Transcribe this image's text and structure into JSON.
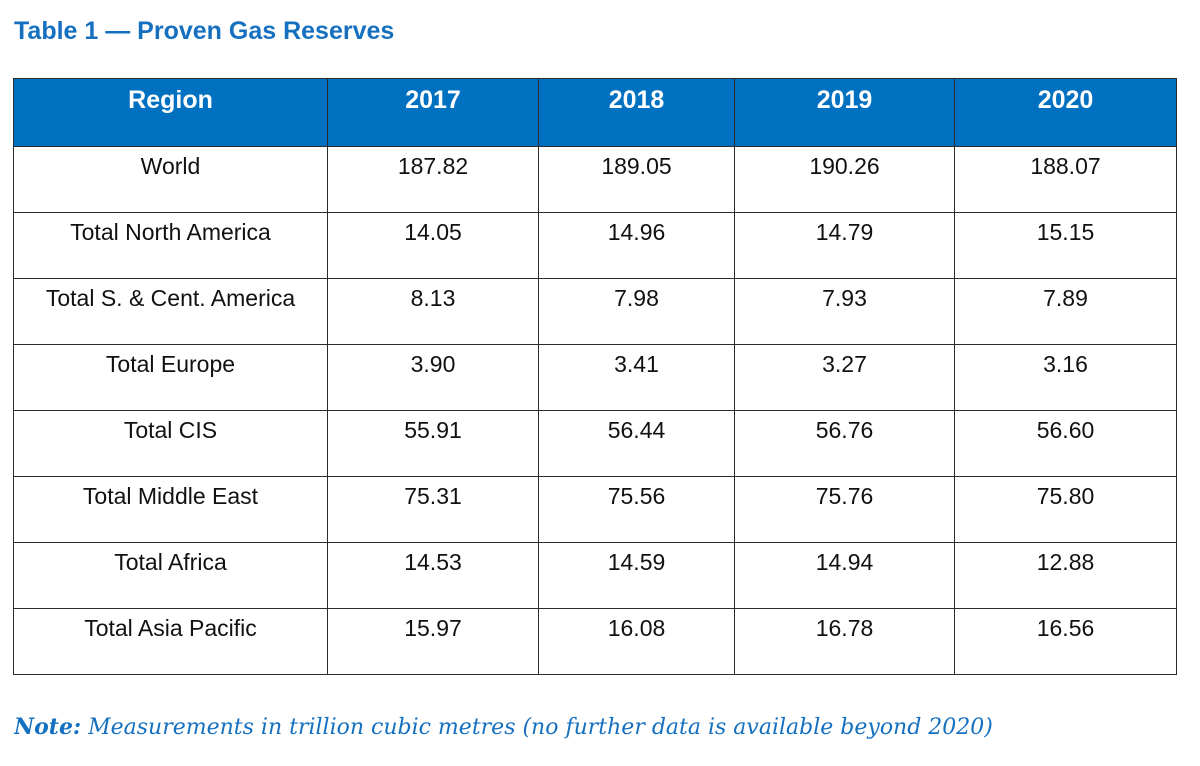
{
  "document": {
    "title": "Table 1 — Proven Gas Reserves",
    "note": {
      "label": "Note:",
      "text": " Measurements in trillion cubic metres (no further data is available beyond 2020)"
    }
  },
  "table": {
    "header_color": "#0070c0",
    "title_color": "#1670c0",
    "columns": [
      "Region",
      "2017",
      "2018",
      "2019",
      "2020"
    ],
    "rows": [
      [
        "World",
        "187.82",
        "189.05",
        "190.26",
        "188.07"
      ],
      [
        "Total North America",
        "14.05",
        "14.96",
        "14.79",
        "15.15"
      ],
      [
        "Total S. & Cent. America",
        "8.13",
        "7.98",
        "7.93",
        "7.89"
      ],
      [
        "Total Europe",
        "3.90",
        "3.41",
        "3.27",
        "3.16"
      ],
      [
        "Total CIS",
        "55.91",
        "56.44",
        "56.76",
        "56.60"
      ],
      [
        "Total Middle East",
        "75.31",
        "75.56",
        "75.76",
        "75.80"
      ],
      [
        "Total Africa",
        "14.53",
        "14.59",
        "14.94",
        "12.88"
      ],
      [
        "Total Asia Pacific",
        "15.97",
        "16.08",
        "16.78",
        "16.56"
      ]
    ]
  }
}
